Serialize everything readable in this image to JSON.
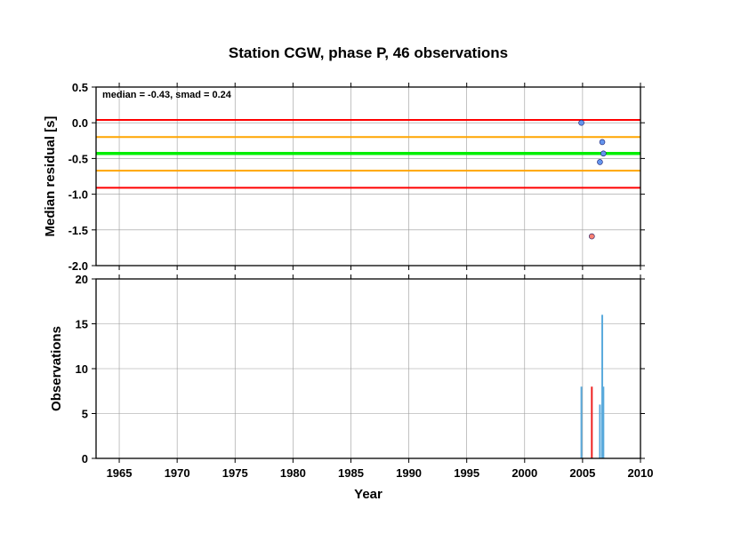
{
  "title": "Station CGW, phase P, 46 observations",
  "chart_data": [
    {
      "type": "scatter",
      "ylabel": "Median residual [s]",
      "annotation": "median = -0.43, smad = 0.24",
      "xlim": [
        1963,
        2010
      ],
      "ylim": [
        -2.0,
        0.5
      ],
      "yticks": [
        "0.5",
        "0.0",
        "-0.5",
        "-1.0",
        "-1.5",
        "-2.0"
      ],
      "ytick_values": [
        0.5,
        0.0,
        -0.5,
        -1.0,
        -1.5,
        -2.0
      ],
      "grid": true,
      "hlines": [
        {
          "y": 0.04,
          "color": "#ff0000"
        },
        {
          "y": -0.2,
          "color": "#ffa500"
        },
        {
          "y": -0.43,
          "color": "#00ee00"
        },
        {
          "y": -0.67,
          "color": "#ffa500"
        },
        {
          "y": -0.91,
          "color": "#ff0000"
        }
      ],
      "points": [
        {
          "x": 2004.9,
          "y": 0.0,
          "color": "#6495ed"
        },
        {
          "x": 2006.7,
          "y": -0.27,
          "color": "#6495ed"
        },
        {
          "x": 2006.8,
          "y": -0.43,
          "color": "#6495ed"
        },
        {
          "x": 2006.5,
          "y": -0.55,
          "color": "#6495ed"
        },
        {
          "x": 2005.8,
          "y": -1.59,
          "color": "#fa8072"
        }
      ]
    },
    {
      "type": "bar",
      "ylabel": "Observations",
      "xlabel": "Year",
      "xlim": [
        1963,
        2010
      ],
      "ylim": [
        0,
        20
      ],
      "xticks": [
        "1965",
        "1970",
        "1975",
        "1980",
        "1985",
        "1990",
        "1995",
        "2000",
        "2005",
        "2010"
      ],
      "xtick_values": [
        1965,
        1970,
        1975,
        1980,
        1985,
        1990,
        1995,
        2000,
        2005,
        2010
      ],
      "yticks": [
        "0",
        "5",
        "10",
        "15",
        "20"
      ],
      "ytick_values": [
        0,
        5,
        10,
        15,
        20
      ],
      "grid": true,
      "bars": [
        {
          "x": 2004.9,
          "value": 8,
          "color": "#5aaadc"
        },
        {
          "x": 2005.8,
          "value": 8,
          "color": "#ee2222"
        },
        {
          "x": 2006.5,
          "value": 6,
          "color": "#5aaadc"
        },
        {
          "x": 2006.7,
          "value": 16,
          "color": "#5aaadc"
        },
        {
          "x": 2006.8,
          "value": 8,
          "color": "#5aaadc"
        }
      ]
    }
  ]
}
